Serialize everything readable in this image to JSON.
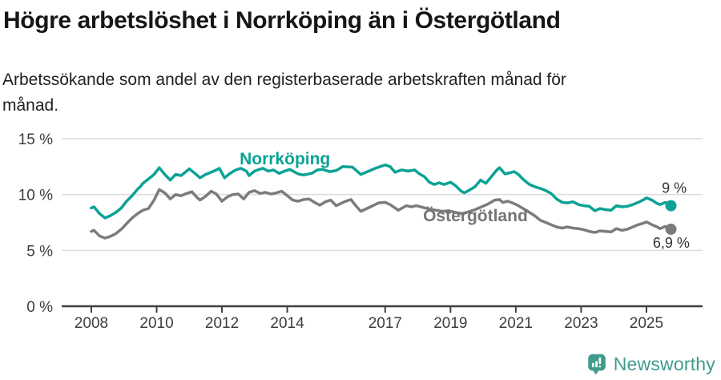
{
  "header": {
    "title": "Högre arbetslöshet i Norrköping än i Östergötland",
    "subtitle_lines": [
      "Arbetssökande som andel av den registerbaserade arbetskraften månad för",
      "månad."
    ]
  },
  "chart_data": {
    "type": "line",
    "title": "Högre arbetslöshet i Norrköping än i Östergötland",
    "subtitle": "Arbetssökande som andel av den registerbaserade arbetskraften månad för månad.",
    "unit": "%",
    "grid": "horizontal",
    "legend": "inline-labels",
    "style": {
      "grid_color": "#dcdcdc",
      "axis_color": "#3f3f3f",
      "tick_color": "#3d3d3d"
    },
    "x_axis": {
      "range": [
        2008,
        2025.75
      ],
      "ticks": [
        {
          "value": 2008,
          "label": "2008"
        },
        {
          "value": 2010,
          "label": "2010"
        },
        {
          "value": 2012,
          "label": "2012"
        },
        {
          "value": 2014,
          "label": "2014"
        },
        {
          "value": 2017,
          "label": "2017"
        },
        {
          "value": 2019,
          "label": "2019"
        },
        {
          "value": 2021,
          "label": "2021"
        },
        {
          "value": 2023,
          "label": "2023"
        },
        {
          "value": 2025,
          "label": "2025"
        }
      ]
    },
    "y_axis": {
      "range": [
        0,
        15
      ],
      "ticks": [
        {
          "value": 0,
          "label": "0 %"
        },
        {
          "value": 5,
          "label": "5 %"
        },
        {
          "value": 10,
          "label": "10 %"
        },
        {
          "value": 15,
          "label": "15 %"
        }
      ]
    },
    "series": [
      {
        "id": "norrkoping",
        "name": "Norrköping",
        "color": "#0ca296",
        "latest_value": "9 %",
        "points": [
          [
            2008.0,
            8.8
          ],
          [
            2008.08,
            8.9
          ],
          [
            2008.25,
            8.3
          ],
          [
            2008.42,
            7.9
          ],
          [
            2008.58,
            8.1
          ],
          [
            2008.75,
            8.4
          ],
          [
            2008.92,
            8.8
          ],
          [
            2009.08,
            9.4
          ],
          [
            2009.25,
            9.9
          ],
          [
            2009.42,
            10.5
          ],
          [
            2009.5,
            10.7
          ],
          [
            2009.58,
            11.0
          ],
          [
            2009.75,
            11.4
          ],
          [
            2009.92,
            11.8
          ],
          [
            2010.08,
            12.4
          ],
          [
            2010.25,
            11.8
          ],
          [
            2010.42,
            11.3
          ],
          [
            2010.58,
            11.8
          ],
          [
            2010.75,
            11.7
          ],
          [
            2010.92,
            12.1
          ],
          [
            2011.0,
            12.3
          ],
          [
            2011.17,
            11.9
          ],
          [
            2011.33,
            11.5
          ],
          [
            2011.5,
            11.8
          ],
          [
            2011.67,
            12.0
          ],
          [
            2011.83,
            12.2
          ],
          [
            2011.92,
            12.35
          ],
          [
            2012.08,
            11.5
          ],
          [
            2012.25,
            11.9
          ],
          [
            2012.42,
            12.2
          ],
          [
            2012.58,
            12.35
          ],
          [
            2012.75,
            12.1
          ],
          [
            2012.83,
            11.7
          ],
          [
            2013.0,
            12.1
          ],
          [
            2013.25,
            12.35
          ],
          [
            2013.42,
            12.1
          ],
          [
            2013.58,
            12.2
          ],
          [
            2013.75,
            11.9
          ],
          [
            2013.92,
            12.1
          ],
          [
            2014.08,
            12.25
          ],
          [
            2014.33,
            11.85
          ],
          [
            2014.5,
            11.75
          ],
          [
            2014.75,
            11.9
          ],
          [
            2014.92,
            12.2
          ],
          [
            2015.08,
            12.25
          ],
          [
            2015.3,
            12.05
          ],
          [
            2015.5,
            12.15
          ],
          [
            2015.7,
            12.5
          ],
          [
            2016.0,
            12.45
          ],
          [
            2016.25,
            11.8
          ],
          [
            2016.5,
            12.1
          ],
          [
            2016.7,
            12.35
          ],
          [
            2017.0,
            12.65
          ],
          [
            2017.15,
            12.5
          ],
          [
            2017.3,
            12.0
          ],
          [
            2017.5,
            12.2
          ],
          [
            2017.7,
            12.1
          ],
          [
            2017.9,
            12.2
          ],
          [
            2018.05,
            11.85
          ],
          [
            2018.2,
            11.6
          ],
          [
            2018.35,
            11.1
          ],
          [
            2018.5,
            10.9
          ],
          [
            2018.65,
            11.05
          ],
          [
            2018.8,
            10.9
          ],
          [
            2019.0,
            11.1
          ],
          [
            2019.15,
            10.8
          ],
          [
            2019.33,
            10.3
          ],
          [
            2019.42,
            10.15
          ],
          [
            2019.58,
            10.4
          ],
          [
            2019.75,
            10.7
          ],
          [
            2019.92,
            11.3
          ],
          [
            2020.08,
            11.0
          ],
          [
            2020.25,
            11.6
          ],
          [
            2020.42,
            12.2
          ],
          [
            2020.5,
            12.4
          ],
          [
            2020.67,
            11.85
          ],
          [
            2020.83,
            11.95
          ],
          [
            2020.95,
            12.05
          ],
          [
            2021.08,
            11.8
          ],
          [
            2021.25,
            11.3
          ],
          [
            2021.42,
            10.9
          ],
          [
            2021.58,
            10.7
          ],
          [
            2021.75,
            10.55
          ],
          [
            2021.92,
            10.35
          ],
          [
            2022.08,
            10.1
          ],
          [
            2022.25,
            9.6
          ],
          [
            2022.42,
            9.3
          ],
          [
            2022.58,
            9.25
          ],
          [
            2022.75,
            9.35
          ],
          [
            2022.92,
            9.1
          ],
          [
            2023.08,
            9.0
          ],
          [
            2023.25,
            8.95
          ],
          [
            2023.42,
            8.55
          ],
          [
            2023.58,
            8.75
          ],
          [
            2023.75,
            8.65
          ],
          [
            2023.92,
            8.6
          ],
          [
            2024.08,
            9.0
          ],
          [
            2024.25,
            8.9
          ],
          [
            2024.42,
            8.95
          ],
          [
            2024.58,
            9.1
          ],
          [
            2024.75,
            9.3
          ],
          [
            2024.92,
            9.55
          ],
          [
            2025.0,
            9.7
          ],
          [
            2025.17,
            9.5
          ],
          [
            2025.33,
            9.2
          ],
          [
            2025.42,
            9.1
          ],
          [
            2025.58,
            9.3
          ],
          [
            2025.75,
            9.0
          ]
        ]
      },
      {
        "id": "ostergotland",
        "name": "Östergötland",
        "color": "#7c7c7c",
        "latest_value": "6,9 %",
        "points": [
          [
            2008.0,
            6.7
          ],
          [
            2008.08,
            6.8
          ],
          [
            2008.25,
            6.3
          ],
          [
            2008.42,
            6.1
          ],
          [
            2008.58,
            6.25
          ],
          [
            2008.75,
            6.5
          ],
          [
            2008.92,
            6.9
          ],
          [
            2009.08,
            7.4
          ],
          [
            2009.25,
            7.9
          ],
          [
            2009.42,
            8.3
          ],
          [
            2009.58,
            8.6
          ],
          [
            2009.75,
            8.75
          ],
          [
            2009.92,
            9.5
          ],
          [
            2010.08,
            10.45
          ],
          [
            2010.25,
            10.15
          ],
          [
            2010.42,
            9.6
          ],
          [
            2010.58,
            10.0
          ],
          [
            2010.75,
            9.9
          ],
          [
            2010.92,
            10.1
          ],
          [
            2011.08,
            10.25
          ],
          [
            2011.25,
            9.7
          ],
          [
            2011.33,
            9.5
          ],
          [
            2011.5,
            9.85
          ],
          [
            2011.67,
            10.3
          ],
          [
            2011.83,
            10.05
          ],
          [
            2012.0,
            9.4
          ],
          [
            2012.17,
            9.8
          ],
          [
            2012.33,
            10.0
          ],
          [
            2012.5,
            10.05
          ],
          [
            2012.67,
            9.6
          ],
          [
            2012.83,
            10.2
          ],
          [
            2013.0,
            10.35
          ],
          [
            2013.17,
            10.1
          ],
          [
            2013.33,
            10.2
          ],
          [
            2013.5,
            10.05
          ],
          [
            2013.67,
            10.15
          ],
          [
            2013.83,
            10.3
          ],
          [
            2014.0,
            9.9
          ],
          [
            2014.17,
            9.5
          ],
          [
            2014.33,
            9.4
          ],
          [
            2014.5,
            9.55
          ],
          [
            2014.67,
            9.6
          ],
          [
            2014.83,
            9.3
          ],
          [
            2015.0,
            9.05
          ],
          [
            2015.17,
            9.35
          ],
          [
            2015.33,
            9.5
          ],
          [
            2015.5,
            9.0
          ],
          [
            2015.75,
            9.35
          ],
          [
            2015.95,
            9.55
          ],
          [
            2016.1,
            9.0
          ],
          [
            2016.25,
            8.5
          ],
          [
            2016.55,
            8.9
          ],
          [
            2016.8,
            9.25
          ],
          [
            2017.0,
            9.3
          ],
          [
            2017.15,
            9.1
          ],
          [
            2017.4,
            8.6
          ],
          [
            2017.65,
            9.0
          ],
          [
            2017.8,
            8.9
          ],
          [
            2017.95,
            9.0
          ],
          [
            2018.15,
            8.85
          ],
          [
            2018.35,
            8.7
          ],
          [
            2018.55,
            8.6
          ],
          [
            2018.75,
            8.5
          ],
          [
            2018.95,
            8.55
          ],
          [
            2019.15,
            8.4
          ],
          [
            2019.35,
            8.3
          ],
          [
            2019.55,
            8.45
          ],
          [
            2019.75,
            8.65
          ],
          [
            2019.95,
            8.9
          ],
          [
            2020.15,
            9.15
          ],
          [
            2020.35,
            9.5
          ],
          [
            2020.5,
            9.55
          ],
          [
            2020.6,
            9.3
          ],
          [
            2020.75,
            9.4
          ],
          [
            2020.9,
            9.25
          ],
          [
            2021.08,
            9.0
          ],
          [
            2021.25,
            8.7
          ],
          [
            2021.42,
            8.4
          ],
          [
            2021.58,
            8.1
          ],
          [
            2021.75,
            7.7
          ],
          [
            2021.92,
            7.5
          ],
          [
            2022.08,
            7.3
          ],
          [
            2022.25,
            7.1
          ],
          [
            2022.42,
            7.0
          ],
          [
            2022.58,
            7.1
          ],
          [
            2022.75,
            7.0
          ],
          [
            2022.92,
            6.95
          ],
          [
            2023.08,
            6.85
          ],
          [
            2023.25,
            6.7
          ],
          [
            2023.42,
            6.6
          ],
          [
            2023.58,
            6.75
          ],
          [
            2023.75,
            6.7
          ],
          [
            2023.92,
            6.65
          ],
          [
            2024.08,
            6.95
          ],
          [
            2024.25,
            6.8
          ],
          [
            2024.42,
            6.9
          ],
          [
            2024.58,
            7.1
          ],
          [
            2024.75,
            7.3
          ],
          [
            2024.92,
            7.45
          ],
          [
            2025.0,
            7.55
          ],
          [
            2025.17,
            7.3
          ],
          [
            2025.33,
            7.1
          ],
          [
            2025.42,
            6.95
          ],
          [
            2025.58,
            7.15
          ],
          [
            2025.75,
            6.9
          ]
        ]
      }
    ],
    "annotations": {
      "series_labels": [
        {
          "text": "Norrköping",
          "year": 2012.54,
          "value": 12.72,
          "anchor": "start",
          "size": 21,
          "color": "#0ca296"
        },
        {
          "text": "Östergötland",
          "year": 2018.16,
          "value": 7.62,
          "anchor": "start",
          "size": 21,
          "color": "#757575"
        }
      ],
      "end_labels": [
        {
          "text": "9 %",
          "year": 2025.85,
          "value": 10.15,
          "anchor": "middle",
          "size": 18,
          "color": "#333333"
        },
        {
          "text": "6,9 %",
          "year": 2025.76,
          "value": 5.25,
          "anchor": "middle",
          "size": 18,
          "color": "#333333"
        }
      ]
    }
  },
  "footer": {
    "brand": "Newsworthy",
    "brand_color": "#3f9b8d"
  }
}
